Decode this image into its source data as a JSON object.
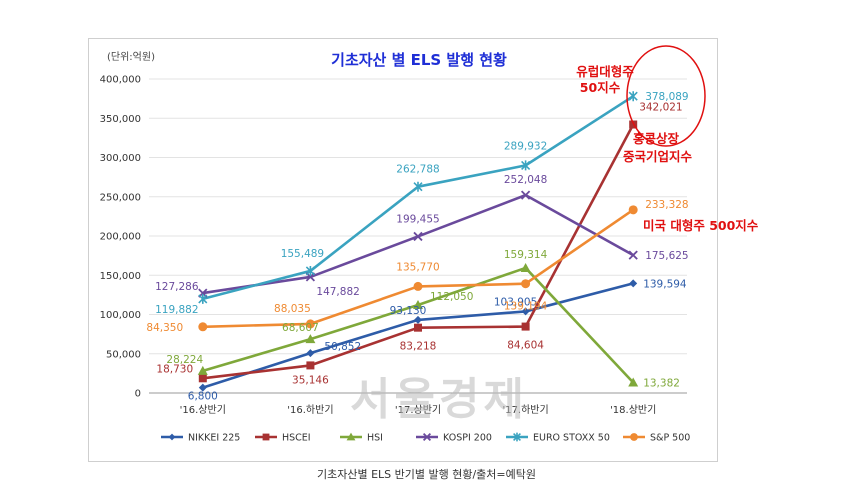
{
  "chart_data": {
    "type": "line",
    "title": "기초자산 별 ELS 발행 현황",
    "unit_label": "(단위:억원)",
    "categories": [
      "'16.상반기",
      "'16.하반기",
      "'17.상반기",
      "'17.하반기",
      "'18.상반기"
    ],
    "ylim": [
      0,
      400000
    ],
    "yticks": [
      "0",
      "50,000",
      "100,000",
      "150,000",
      "200,000",
      "250,000",
      "300,000",
      "350,000",
      "400,000"
    ],
    "series": [
      {
        "name": "NIKKEI 225",
        "color": "#2e5ca8",
        "marker": "diamond",
        "values": [
          6800,
          50852,
          93130,
          103905,
          139594
        ],
        "labels": [
          "6,800",
          "50,852",
          "93,130",
          "103,905",
          "139,594"
        ]
      },
      {
        "name": "HSCEI",
        "color": "#a83232",
        "marker": "square",
        "values": [
          18730,
          35146,
          83218,
          84604,
          342021
        ],
        "labels": [
          "18,730",
          "35,146",
          "83,218",
          "84,604",
          "342,021"
        ]
      },
      {
        "name": "HSI",
        "color": "#7fa83a",
        "marker": "triangle",
        "values": [
          28224,
          68607,
          112050,
          159314,
          13382
        ],
        "labels": [
          "28,224",
          "68,607",
          "112,050",
          "159,314",
          "13,382"
        ]
      },
      {
        "name": "KOSPI 200",
        "color": "#6a4a9c",
        "marker": "x",
        "values": [
          127286,
          147882,
          199455,
          252048,
          175625
        ],
        "labels": [
          "127,286",
          "147,882",
          "199,455",
          "252,048",
          "175,625"
        ]
      },
      {
        "name": "EURO STOXX 50",
        "color": "#3aa3c0",
        "marker": "star",
        "values": [
          119882,
          155489,
          262788,
          289932,
          378089
        ],
        "labels": [
          "119,882",
          "155,489",
          "262,788",
          "289,932",
          "378,089"
        ]
      },
      {
        "name": "S&P 500",
        "color": "#ef8a32",
        "marker": "circle",
        "values": [
          84350,
          88035,
          135770,
          139194,
          233328
        ],
        "labels": [
          "84,350",
          "88,035",
          "135,770",
          "139,194",
          "233,328"
        ]
      }
    ],
    "annotations": [
      {
        "line1": "유럽대형주",
        "line2": "50지수"
      },
      {
        "line1": "홍콩상장",
        "line2": "중국기업지수"
      },
      {
        "line1": "미국 대형주 500지수",
        "line2": ""
      }
    ],
    "watermark": "서울경제",
    "highlight_color": "#e01010"
  },
  "caption": "기초자산별 ELS 반기별 발행 현황/출처=예탁원"
}
